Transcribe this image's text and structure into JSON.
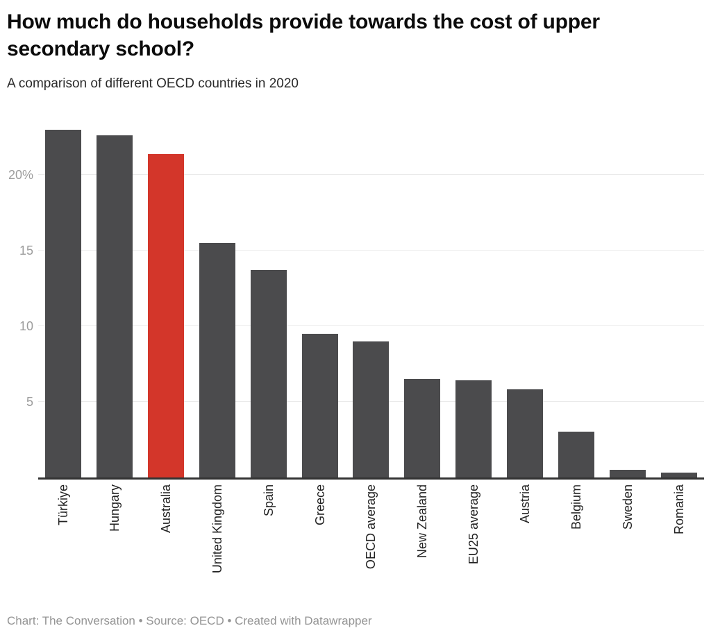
{
  "header": {
    "title": "How much do households provide towards the cost of upper secondary school?",
    "subtitle": "A comparison of different OECD countries in 2020"
  },
  "chart_data": {
    "type": "bar",
    "title": "How much do households provide towards the cost of upper secondary school?",
    "subtitle": "A comparison of different OECD countries in 2020",
    "unit": "%",
    "categories": [
      "Türkiye",
      "Hungary",
      "Australia",
      "United Kingdom",
      "Spain",
      "Greece",
      "OECD average",
      "New Zealand",
      "EU25 average",
      "Austria",
      "Belgium",
      "Sweden",
      "Romania"
    ],
    "values": [
      23,
      22.6,
      21.4,
      15.5,
      13.7,
      9.5,
      9,
      6.5,
      6.4,
      5.8,
      3,
      0.5,
      0.3
    ],
    "highlight_category": "Australia",
    "y_ticks": [
      {
        "value": 5,
        "label": "5"
      },
      {
        "value": 10,
        "label": "10"
      },
      {
        "value": 15,
        "label": "15"
      },
      {
        "value": 20,
        "label": "20%"
      }
    ],
    "ylim": [
      0,
      23.5
    ],
    "grid": "horizontal",
    "legend": "none",
    "colors": {
      "bar": "#4b4b4d",
      "highlight": "#d3362a",
      "gridline": "#eaeaea",
      "axis_line": "#333333",
      "tick_label": "#9c9c9c",
      "category_label": "#222222"
    }
  },
  "footer": {
    "text": "Chart: The Conversation • Source: OECD • Created with Datawrapper"
  }
}
